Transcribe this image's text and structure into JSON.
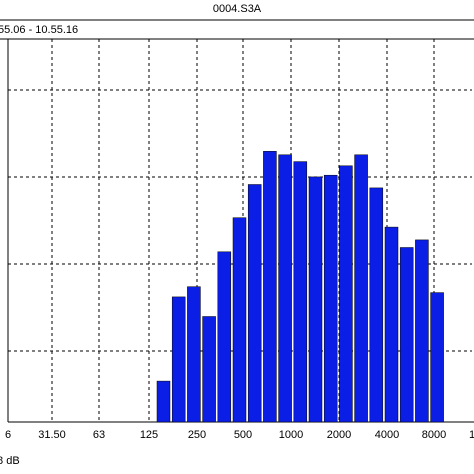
{
  "header": {
    "title": "0004.S3A",
    "time_range": "55.06 - 10.55.16",
    "level_readout": ".8 dB"
  },
  "colors": {
    "bar_fill": "#0a1ee6",
    "bar_edge": "#000000",
    "grid": "#000000",
    "background": "#ffffff"
  },
  "chart_data": {
    "type": "bar",
    "title": "",
    "xlabel": "",
    "ylabel": "",
    "grid": true,
    "x_scale": "log (1/3-octave bands)",
    "x_tick_labels": [
      "6",
      "31.50",
      "63",
      "125",
      "250",
      "500",
      "1000",
      "2000",
      "4000",
      "8000",
      "1"
    ],
    "categories": [
      "160",
      "200",
      "250",
      "315",
      "400",
      "500",
      "630",
      "800",
      "1000",
      "1250",
      "1600",
      "2000",
      "2500",
      "3150",
      "4000",
      "5000",
      "6300",
      "8000",
      "10000"
    ],
    "values": [
      0.48,
      1.47,
      1.59,
      1.24,
      2.0,
      2.4,
      2.79,
      3.18,
      3.14,
      3.06,
      2.88,
      2.9,
      3.01,
      3.14,
      2.75,
      2.29,
      2.05,
      2.14,
      1.52
    ],
    "y_gridlines": 5,
    "ylim": [
      0,
      4.5
    ]
  }
}
